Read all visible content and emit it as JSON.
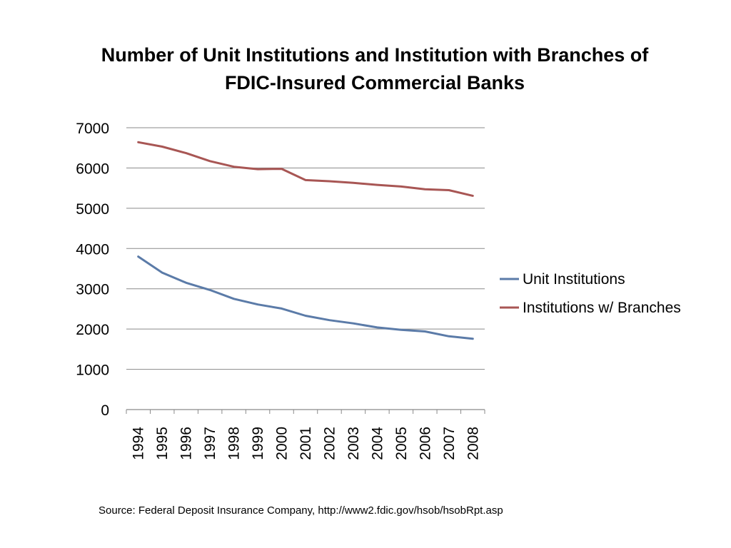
{
  "slide": {
    "title_line1": "Number of Unit Institutions and Institution with Branches of",
    "title_line2": "FDIC-Insured Commercial Banks",
    "source": "Source:  Federal Deposit Insurance Company, http://www2.fdic.gov/hsob/hsobRpt.asp"
  },
  "chart_data": {
    "type": "line",
    "title": "",
    "xlabel": "",
    "ylabel": "",
    "x": [
      "1994",
      "1995",
      "1996",
      "1997",
      "1998",
      "1999",
      "2000",
      "2001",
      "2002",
      "2003",
      "2004",
      "2005",
      "2006",
      "2007",
      "2008"
    ],
    "series": [
      {
        "name": "Unit Institutions",
        "color": "#5b7ba8",
        "values": [
          3800,
          3400,
          3150,
          2970,
          2750,
          2610,
          2510,
          2330,
          2220,
          2140,
          2040,
          1980,
          1940,
          1820,
          1760
        ]
      },
      {
        "name": "Institutions w/ Branches",
        "color": "#a85654",
        "values": [
          6640,
          6530,
          6370,
          6170,
          6030,
          5970,
          5980,
          5700,
          5670,
          5630,
          5580,
          5540,
          5470,
          5450,
          5310
        ]
      }
    ],
    "ylim": [
      0,
      7000
    ],
    "yticks": [
      0,
      1000,
      2000,
      3000,
      4000,
      5000,
      6000,
      7000
    ],
    "grid": true,
    "legend": "right"
  }
}
